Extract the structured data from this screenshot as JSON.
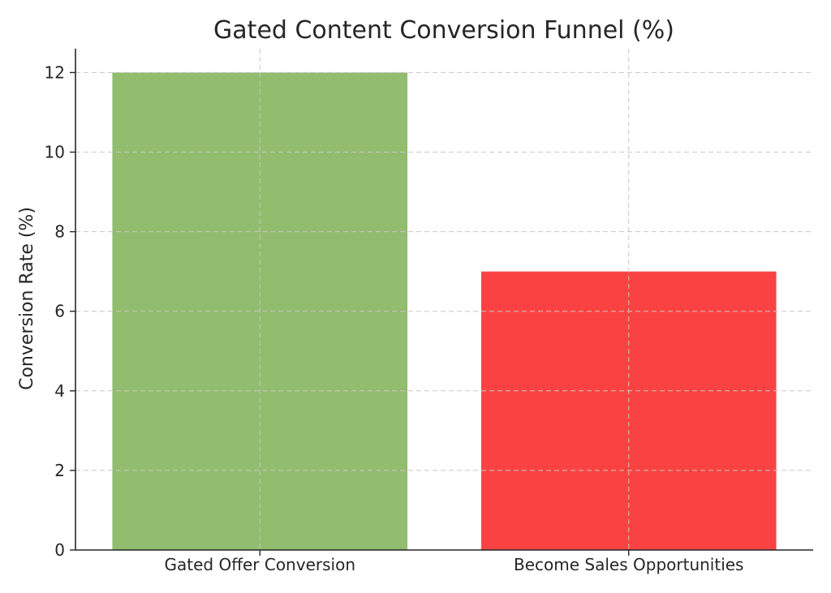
{
  "chart_data": {
    "type": "bar",
    "title": "Gated Content Conversion Funnel (%)",
    "xlabel": "",
    "ylabel": "Conversion Rate (%)",
    "categories": [
      "Gated Offer Conversion",
      "Become Sales Opportunities"
    ],
    "values": [
      12,
      7
    ],
    "colors": [
      "#92bc6e",
      "#fb4242"
    ],
    "ylim": [
      0,
      12.6
    ],
    "yticks": [
      0,
      2,
      4,
      6,
      8,
      10,
      12
    ],
    "grid": true,
    "legend": "none"
  }
}
